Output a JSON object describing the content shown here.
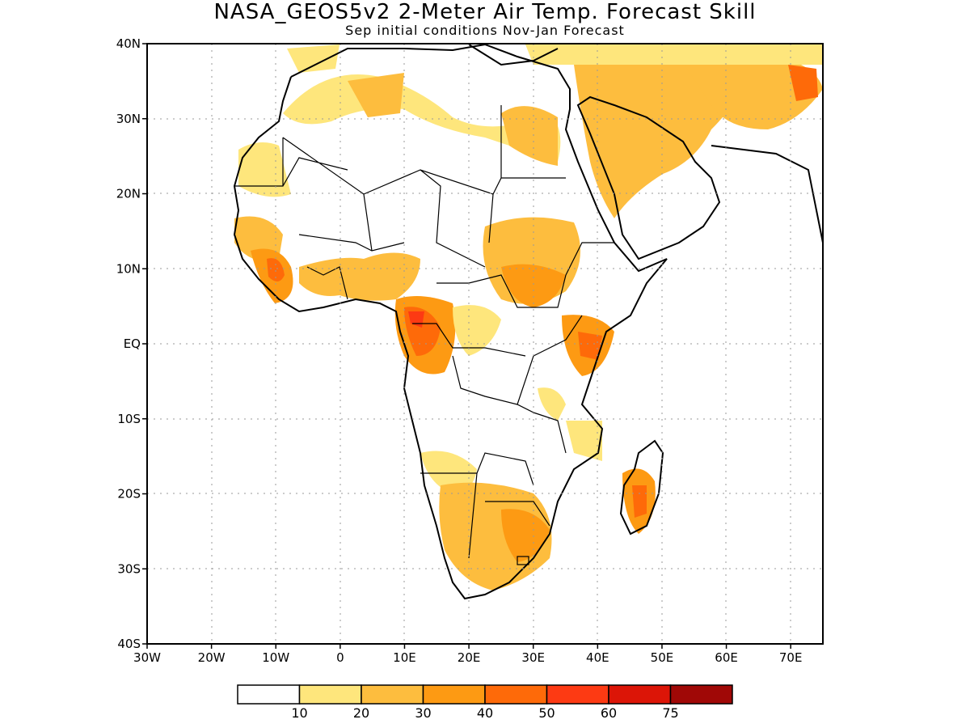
{
  "title": "NASA_GEOS5v2 2-Meter Air Temp. Forecast Skill",
  "subtitle": "Sep initial conditions  Nov-Jan Forecast",
  "map": {
    "lon_range": [
      -30,
      75
    ],
    "lat_range": [
      -40,
      40
    ],
    "lon_ticks": [
      {
        "value": -30,
        "label": "30W"
      },
      {
        "value": -20,
        "label": "20W"
      },
      {
        "value": -10,
        "label": "10W"
      },
      {
        "value": 0,
        "label": "0"
      },
      {
        "value": 10,
        "label": "10E"
      },
      {
        "value": 20,
        "label": "20E"
      },
      {
        "value": 30,
        "label": "30E"
      },
      {
        "value": 40,
        "label": "40E"
      },
      {
        "value": 50,
        "label": "50E"
      },
      {
        "value": 60,
        "label": "60E"
      },
      {
        "value": 70,
        "label": "70E"
      }
    ],
    "lat_ticks": [
      {
        "value": 40,
        "label": "40N"
      },
      {
        "value": 30,
        "label": "30N"
      },
      {
        "value": 20,
        "label": "20N"
      },
      {
        "value": 10,
        "label": "10N"
      },
      {
        "value": 0,
        "label": "EQ"
      },
      {
        "value": -10,
        "label": "10S"
      },
      {
        "value": -20,
        "label": "20S"
      },
      {
        "value": -30,
        "label": "30S"
      },
      {
        "value": -40,
        "label": "40S"
      }
    ],
    "grid": true,
    "grid_style": "dotted"
  },
  "colorbar": {
    "colors": [
      "#ffffff",
      "#fee67c",
      "#fdbd3e",
      "#fd9a13",
      "#fe6a09",
      "#fd3a13",
      "#dc1507",
      "#a00806"
    ],
    "labels": [
      "10",
      "20",
      "30",
      "40",
      "50",
      "60",
      "75"
    ]
  },
  "chart_data": {
    "type": "heatmap",
    "title": "NASA_GEOS5v2 2-Meter Air Temp. Forecast Skill",
    "subtitle": "Sep initial conditions  Nov-Jan Forecast",
    "xlim": [
      -30,
      75
    ],
    "ylim": [
      -40,
      40
    ],
    "levels": [
      10,
      20,
      30,
      40,
      50,
      60,
      75
    ],
    "skill_regions": [
      {
        "region": "Gabon / Congo",
        "lon": 12,
        "lat": 0,
        "level": 60
      },
      {
        "region": "Kenya",
        "lon": 39,
        "lat": 0,
        "level": 50
      },
      {
        "region": "Madagascar",
        "lon": 46,
        "lat": -21,
        "level": 50
      },
      {
        "region": "Sierra Leone / Guinea",
        "lon": -11,
        "lat": 10,
        "level": 50
      },
      {
        "region": "South Sudan",
        "lon": 30,
        "lat": 8,
        "level": 40
      },
      {
        "region": "Southern Africa",
        "lon": 28,
        "lat": -25,
        "level": 40
      },
      {
        "region": "Arabia",
        "lon": 45,
        "lat": 25,
        "level": 30
      },
      {
        "region": "Pakistan",
        "lon": 72,
        "lat": 35,
        "level": 50
      }
    ]
  }
}
